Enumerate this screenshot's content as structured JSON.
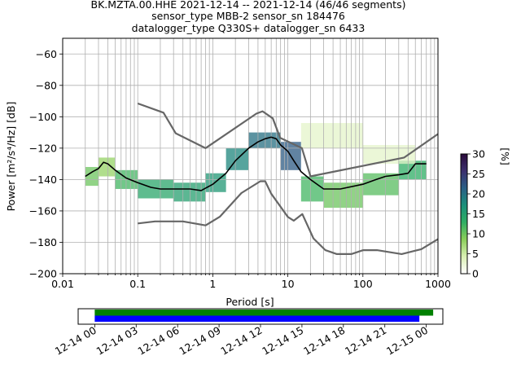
{
  "title": {
    "line1": "BK.MZTA.00.HHE   2021-12-14 -- 2021-12-14  (46/46 segments)",
    "line2": "sensor_type MBB-2 sensor_sn 184476",
    "line3": "datalogger_type Q330S+ datalogger_sn 6433"
  },
  "chart_data": [
    {
      "type": "heatmap",
      "xlabel": "Period [s]",
      "ylabel": "Power [m²/s⁴/Hz] [dB]",
      "x_scale": "log",
      "xlim": [
        0.01,
        1000
      ],
      "ylim": [
        -200,
        -50
      ],
      "x_ticks": [
        {
          "value": 0.01,
          "label": "0.01"
        },
        {
          "value": 0.1,
          "label": "0.1"
        },
        {
          "value": 1,
          "label": "1"
        },
        {
          "value": 10,
          "label": "10"
        },
        {
          "value": 100,
          "label": "100"
        },
        {
          "value": 1000,
          "label": "1000"
        }
      ],
      "y_ticks": [
        {
          "value": -60,
          "label": "−60"
        },
        {
          "value": -80,
          "label": "−80"
        },
        {
          "value": -100,
          "label": "−100"
        },
        {
          "value": -120,
          "label": "−120"
        },
        {
          "value": -140,
          "label": "−140"
        },
        {
          "value": -160,
          "label": "−160"
        },
        {
          "value": -180,
          "label": "−180"
        },
        {
          "value": -200,
          "label": "−200"
        }
      ],
      "grid": true,
      "colorbar": {
        "label": "[%]",
        "range": [
          0,
          30
        ],
        "ticks": [
          {
            "value": 0,
            "label": "0"
          },
          {
            "value": 5,
            "label": "5"
          },
          {
            "value": 10,
            "label": "10"
          },
          {
            "value": 15,
            "label": "15"
          },
          {
            "value": 20,
            "label": "20"
          },
          {
            "value": 25,
            "label": "25"
          },
          {
            "value": 30,
            "label": "30"
          }
        ],
        "colors": [
          "#ffffff",
          "#d9efb2",
          "#8bcf5a",
          "#2fae63",
          "#1a8f7a",
          "#2a5f86",
          "#3b2f6e",
          "#2a0a3a"
        ]
      },
      "series": [
        {
          "name": "",
          "role": "mean",
          "color": "#000000",
          "points": [
            [
              0.02,
              -138
            ],
            [
              0.025,
              -135
            ],
            [
              0.03,
              -133
            ],
            [
              0.035,
              -129
            ],
            [
              0.04,
              -130
            ],
            [
              0.05,
              -134
            ],
            [
              0.07,
              -139
            ],
            [
              0.1,
              -142
            ],
            [
              0.15,
              -145
            ],
            [
              0.2,
              -146
            ],
            [
              0.3,
              -146
            ],
            [
              0.5,
              -146
            ],
            [
              0.7,
              -147
            ],
            [
              1,
              -143
            ],
            [
              1.5,
              -136
            ],
            [
              2,
              -128
            ],
            [
              3,
              -120
            ],
            [
              4,
              -116
            ],
            [
              5,
              -114
            ],
            [
              6,
              -113
            ],
            [
              7,
              -114
            ],
            [
              8,
              -118
            ],
            [
              10,
              -122
            ],
            [
              12,
              -128
            ],
            [
              15,
              -135
            ],
            [
              20,
              -140
            ],
            [
              30,
              -146
            ],
            [
              50,
              -146
            ],
            [
              100,
              -143
            ],
            [
              150,
              -140
            ],
            [
              200,
              -138
            ],
            [
              300,
              -137
            ],
            [
              400,
              -136
            ],
            [
              500,
              -130
            ],
            [
              700,
              -130
            ]
          ]
        },
        {
          "name": "",
          "role": "noise-model-high",
          "color": "#666666",
          "points": [
            [
              0.1,
              -91.5
            ],
            [
              0.22,
              -97.4
            ],
            [
              0.32,
              -110.5
            ],
            [
              0.8,
              -120
            ],
            [
              3.8,
              -98
            ],
            [
              4.6,
              -96.5
            ],
            [
              6.3,
              -101
            ],
            [
              7.9,
              -113.5
            ],
            [
              15.4,
              -120
            ],
            [
              20,
              -138
            ],
            [
              354.8,
              -126
            ],
            [
              1000,
              -111
            ]
          ]
        },
        {
          "name": "",
          "role": "noise-model-low",
          "color": "#666666",
          "points": [
            [
              0.1,
              -168
            ],
            [
              0.17,
              -166.7
            ],
            [
              0.4,
              -166.7
            ],
            [
              0.8,
              -169.2
            ],
            [
              1.24,
              -163.7
            ],
            [
              2.4,
              -148.6
            ],
            [
              4.3,
              -141.1
            ],
            [
              5,
              -141.1
            ],
            [
              6,
              -149
            ],
            [
              10,
              -163.8
            ],
            [
              12,
              -166.2
            ],
            [
              15.6,
              -162
            ],
            [
              21.9,
              -177.5
            ],
            [
              31.6,
              -185
            ],
            [
              45,
              -187.5
            ],
            [
              70,
              -187.5
            ],
            [
              101,
              -185
            ],
            [
              154,
              -185
            ],
            [
              328,
              -187.5
            ],
            [
              600,
              -184.4
            ],
            [
              1000,
              -178
            ]
          ]
        }
      ],
      "density_cells": [
        {
          "x_range": [
            0.02,
            0.03
          ],
          "y_range": [
            -144,
            -132
          ],
          "percent": 10
        },
        {
          "x_range": [
            0.03,
            0.05
          ],
          "y_range": [
            -138,
            -126
          ],
          "percent": 8
        },
        {
          "x_range": [
            0.05,
            0.1
          ],
          "y_range": [
            -146,
            -134
          ],
          "percent": 12
        },
        {
          "x_range": [
            0.1,
            0.3
          ],
          "y_range": [
            -152,
            -140
          ],
          "percent": 14
        },
        {
          "x_range": [
            0.3,
            0.8
          ],
          "y_range": [
            -154,
            -142
          ],
          "percent": 15
        },
        {
          "x_range": [
            0.8,
            1.5
          ],
          "y_range": [
            -148,
            -136
          ],
          "percent": 16
        },
        {
          "x_range": [
            1.5,
            3
          ],
          "y_range": [
            -134,
            -120
          ],
          "percent": 18
        },
        {
          "x_range": [
            3,
            8
          ],
          "y_range": [
            -120,
            -110
          ],
          "percent": 20
        },
        {
          "x_range": [
            8,
            15
          ],
          "y_range": [
            -134,
            -116
          ],
          "percent": 22
        },
        {
          "x_range": [
            15,
            30
          ],
          "y_range": [
            -154,
            -138
          ],
          "percent": 12
        },
        {
          "x_range": [
            30,
            100
          ],
          "y_range": [
            -158,
            -142
          ],
          "percent": 10
        },
        {
          "x_range": [
            100,
            300
          ],
          "y_range": [
            -150,
            -136
          ],
          "percent": 11
        },
        {
          "x_range": [
            300,
            700
          ],
          "y_range": [
            -140,
            -128
          ],
          "percent": 13
        },
        {
          "x_range": [
            15,
            100
          ],
          "y_range": [
            -120,
            -104
          ],
          "percent": 3
        },
        {
          "x_range": [
            100,
            500
          ],
          "y_range": [
            -130,
            -118
          ],
          "percent": 3
        }
      ]
    },
    {
      "type": "timeline",
      "xlabel": "",
      "x_ticks": [
        "12-14 00",
        "12-14 03",
        "12-14 06",
        "12-14 09",
        "12-14 12",
        "12-14 15",
        "12-14 18",
        "12-14 21",
        "12-15 00"
      ],
      "x_tick_hours": [
        0,
        3,
        6,
        9,
        12,
        15,
        18,
        21,
        24
      ],
      "xlim_hours": [
        -1.2,
        25.2
      ],
      "bars": [
        {
          "name": "",
          "start_hour": 0,
          "end_hour": 24.5,
          "color": "#008000"
        },
        {
          "name": "",
          "start_hour": 0,
          "end_hour": 23.5,
          "color": "#0000ff"
        }
      ]
    }
  ]
}
